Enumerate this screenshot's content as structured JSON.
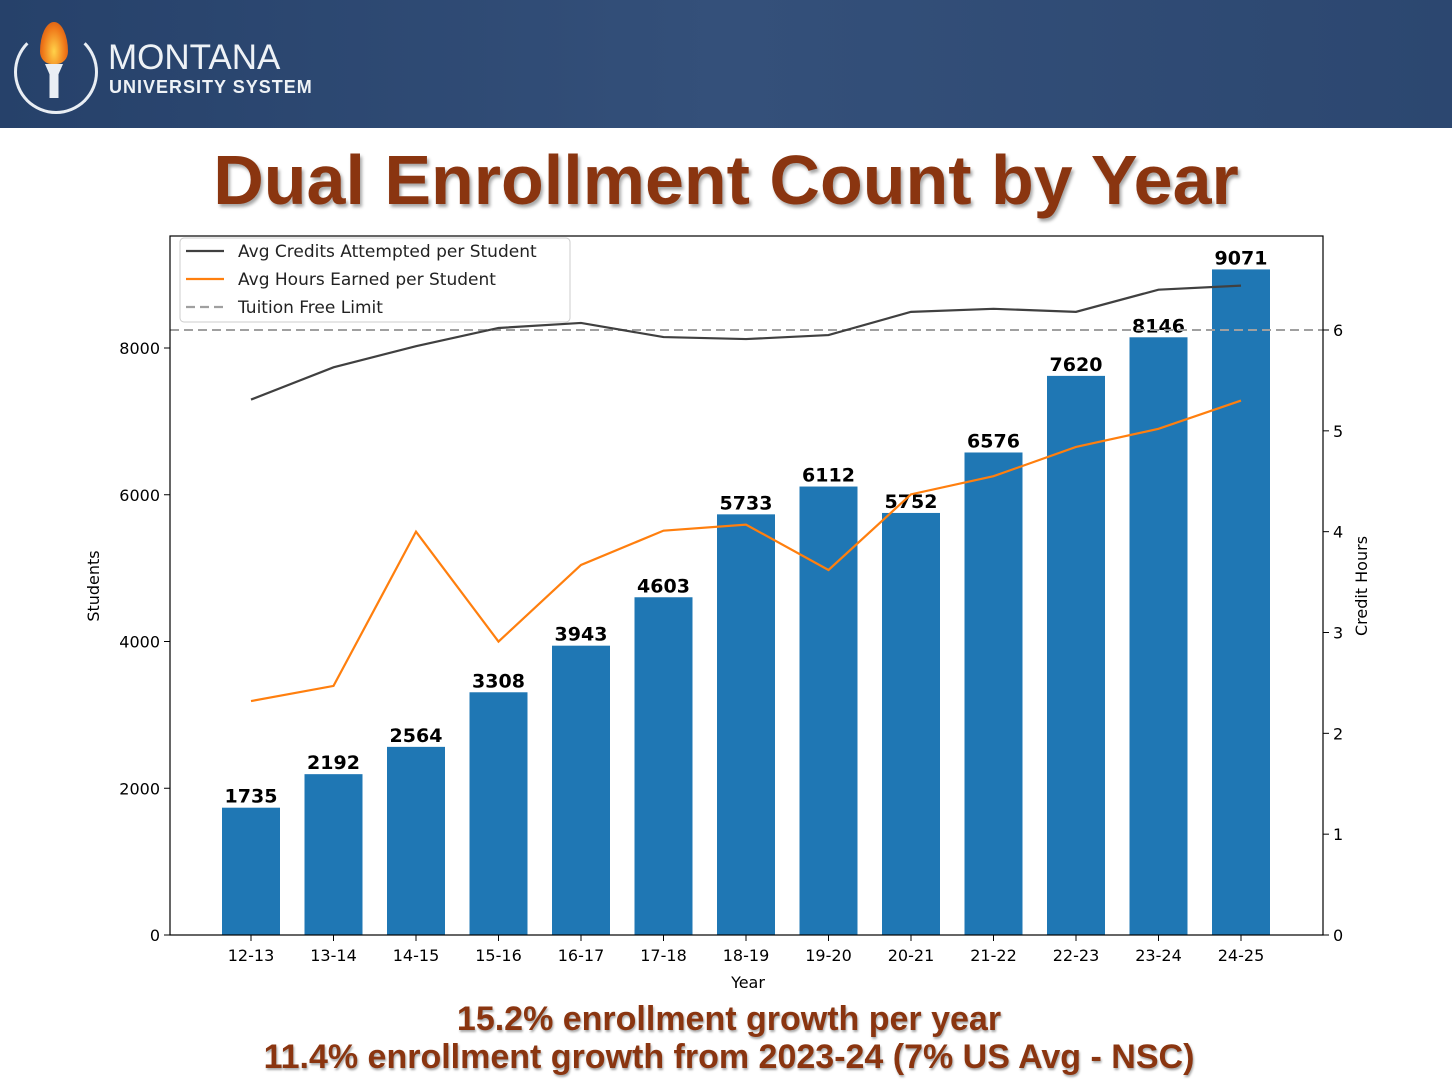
{
  "header": {
    "logo_main": "MONTANA",
    "logo_sub": "UNIVERSITY SYSTEM"
  },
  "title": "Dual Enrollment Count by Year",
  "notes": [
    "15.2% enrollment growth per year",
    "11.4% enrollment growth from 2023-24 (7% US Avg - NSC)"
  ],
  "colors": {
    "bar": "#1f77b4",
    "credits": "#404040",
    "hours": "#ff7f0e",
    "limit": "#a0a0a0"
  },
  "chart_data": {
    "type": "bar",
    "categories": [
      "12-13",
      "13-14",
      "14-15",
      "15-16",
      "16-17",
      "17-18",
      "18-19",
      "19-20",
      "20-21",
      "21-22",
      "22-23",
      "23-24",
      "24-25"
    ],
    "values": [
      1735,
      2192,
      2564,
      3308,
      3943,
      4603,
      5733,
      6112,
      5752,
      6576,
      7620,
      8146,
      9071
    ],
    "xlabel": "Year",
    "ylabel": "Students",
    "y2label": "Credit Hours",
    "ylim": [
      0,
      9500
    ],
    "yticks": [
      0,
      2000,
      4000,
      6000,
      8000
    ],
    "y2lim": [
      0,
      6.0
    ],
    "y2ticks": [
      0,
      1,
      2,
      3,
      4,
      5,
      6
    ],
    "series": [
      {
        "name": "Avg Credits Attempted per Student",
        "axis": "right",
        "type": "line",
        "values": [
          5.31,
          5.63,
          5.84,
          6.02,
          6.07,
          5.93,
          5.91,
          5.95,
          6.18,
          6.21,
          6.18,
          6.4,
          6.44
        ]
      },
      {
        "name": "Avg Hours Earned per Student",
        "axis": "right",
        "type": "line",
        "values": [
          2.32,
          2.47,
          4.0,
          2.91,
          3.67,
          4.01,
          4.07,
          3.62,
          4.37,
          4.55,
          4.84,
          5.02,
          5.3
        ]
      },
      {
        "name": "Tuition Free Limit",
        "axis": "right",
        "type": "hline",
        "value": 6
      }
    ],
    "legend": "top-left"
  }
}
